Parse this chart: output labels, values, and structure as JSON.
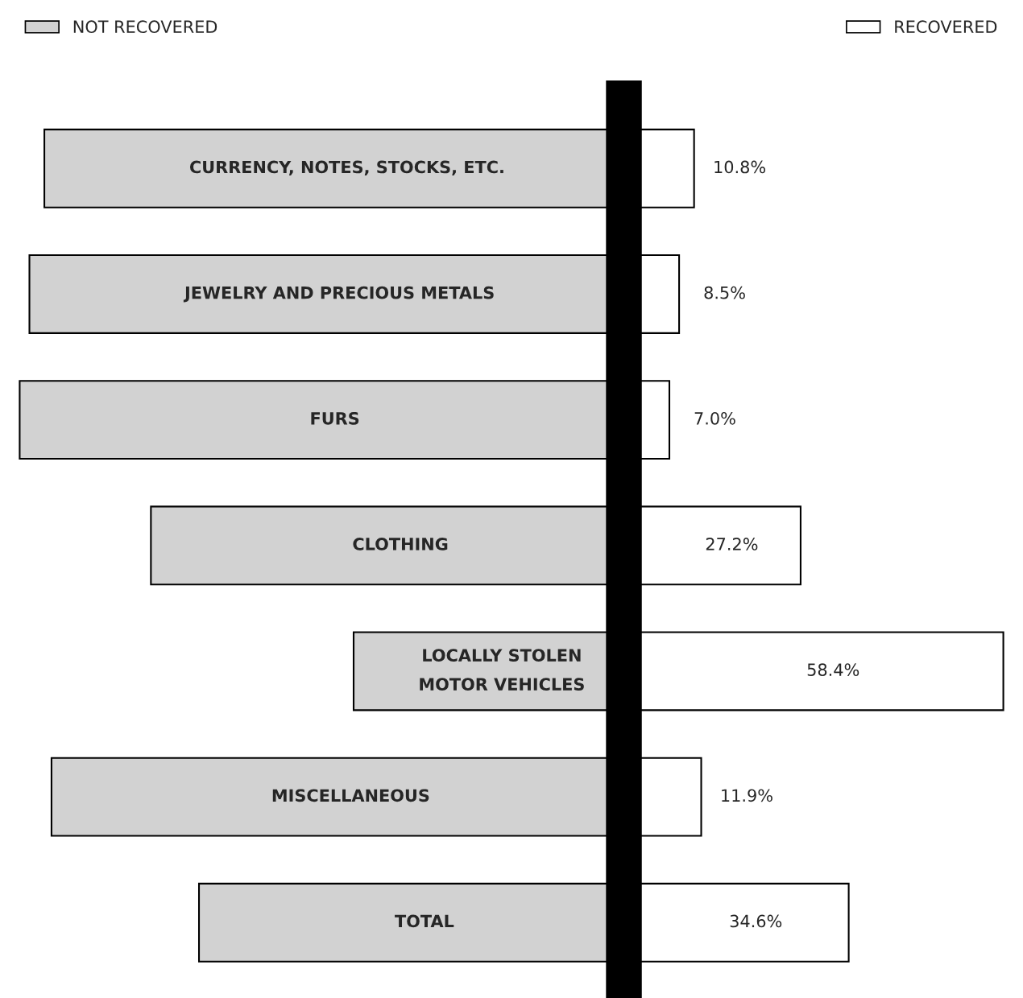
{
  "chart_data": {
    "type": "bar",
    "orientation": "horizontal",
    "stacked": true,
    "categories": [
      "CURRENCY, NOTES, STOCKS, ETC.",
      "JEWELRY AND PRECIOUS METALS",
      "FURS",
      "CLOTHING",
      "LOCALLY STOLEN\nMOTOR VEHICLES",
      "MISCELLANEOUS",
      "TOTAL"
    ],
    "series": [
      {
        "name": "NOT RECOVERED",
        "color": "#d2d2d2",
        "values": [
          -89.2,
          -91.5,
          -93.0,
          -72.8,
          -41.6,
          -88.1,
          -65.4
        ]
      },
      {
        "name": "RECOVERED",
        "color": "#ffffff",
        "values": [
          10.8,
          8.5,
          7.0,
          27.2,
          58.4,
          11.9,
          34.6
        ],
        "value_labels": [
          "10.8%",
          "8.5%",
          "7.0%",
          "27.2%",
          "58.4%",
          "11.9%",
          "34.6%"
        ]
      }
    ],
    "ref_lines": [
      {
        "axis": "x",
        "value": 0,
        "color": "#000000"
      }
    ],
    "legend": "top"
  }
}
